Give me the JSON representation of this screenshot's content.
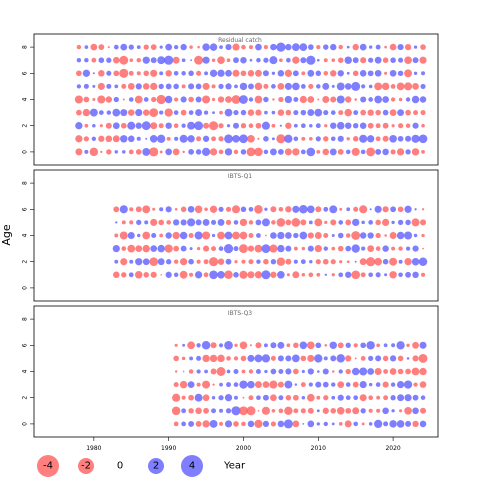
{
  "chart_data": {
    "type": "scatter",
    "ylabel": "Age",
    "xlabel": "Year",
    "xlim": [
      1972,
      2026
    ],
    "x_ticks": [
      1980,
      1990,
      2000,
      2010,
      2020
    ],
    "y_ticks": [
      0,
      2,
      4,
      6,
      8
    ],
    "legend": {
      "placement": "bottom",
      "entries": [
        "-4",
        "-2",
        "0",
        "2",
        "4"
      ],
      "title": "Year"
    },
    "colors": {
      "negative": "#ff5a5a",
      "positive": "#5a5aff"
    },
    "panels": [
      {
        "title": "Residual catch",
        "ylim": [
          -1,
          9
        ],
        "year_start": 1978,
        "year_end": 2024,
        "ages": [
          0,
          1,
          2,
          3,
          4,
          5,
          6,
          7,
          8
        ],
        "seed": 11
      },
      {
        "title": "IBTS-Q1",
        "ylim": [
          -1,
          9
        ],
        "year_start": 1983,
        "year_end": 2024,
        "ages": [
          1,
          2,
          3,
          4,
          5,
          6
        ],
        "seed": 23
      },
      {
        "title": "IBTS-Q3",
        "ylim": [
          -1,
          9
        ],
        "year_start": 1991,
        "year_end": 2024,
        "ages": [
          0,
          1,
          2,
          3,
          4,
          5,
          6
        ],
        "seed": 37
      }
    ]
  }
}
